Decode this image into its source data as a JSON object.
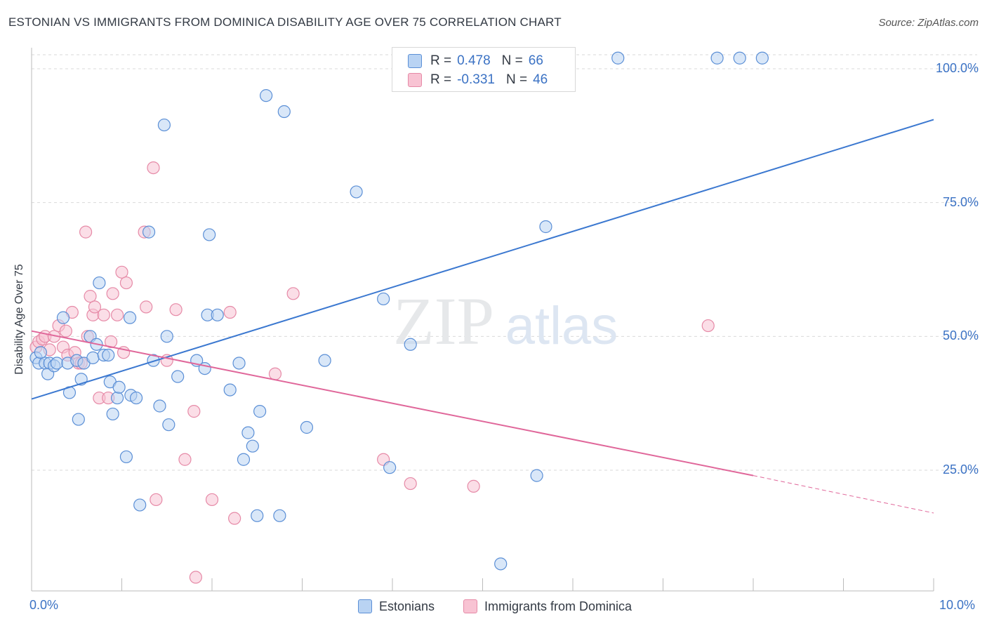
{
  "title": "ESTONIAN VS IMMIGRANTS FROM DOMINICA DISABILITY AGE OVER 75 CORRELATION CHART",
  "source": "Source: ZipAtlas.com",
  "watermark": {
    "zip": "ZIP",
    "atlas": "atlas"
  },
  "legend_top": {
    "rows": [
      {
        "r_label": "R =",
        "r_value": "0.478",
        "n_label": "N =",
        "n_value": "66"
      },
      {
        "r_label": "R =",
        "r_value": "-0.331",
        "n_label": "N =",
        "n_value": "46"
      }
    ]
  },
  "legend_bottom": {
    "series1": "Estonians",
    "series2": "Immigrants from Dominica"
  },
  "colors": {
    "blue_fill": "#b9d3f3",
    "blue_stroke": "#5b8fd6",
    "blue_line": "#3b78d0",
    "pink_fill": "#f8c3d3",
    "pink_stroke": "#e68aa7",
    "pink_line": "#e0679a",
    "tick_text": "#3b72c4",
    "grid": "#d9d9d9"
  },
  "chart_data": {
    "type": "scatter",
    "title": "ESTONIAN VS IMMIGRANTS FROM DOMINICA DISABILITY AGE OVER 75 CORRELATION CHART",
    "xlabel": "",
    "ylabel": "Disability Age Over 75",
    "xlim": [
      0,
      10
    ],
    "ylim": [
      0,
      102
    ],
    "x_tick_labels": [
      "0.0%",
      "10.0%"
    ],
    "y_ticks": [
      25,
      50,
      75,
      100
    ],
    "y_tick_labels": [
      "25.0%",
      "50.0%",
      "75.0%",
      "100.0%"
    ],
    "grid": true,
    "series": [
      {
        "name": "Estonians",
        "color": "#5b8fd6",
        "points": [
          [
            0.05,
            46
          ],
          [
            0.08,
            45
          ],
          [
            0.1,
            47
          ],
          [
            0.15,
            45
          ],
          [
            0.18,
            43
          ],
          [
            0.2,
            45
          ],
          [
            0.25,
            44.5
          ],
          [
            0.28,
            45
          ],
          [
            0.35,
            53.5
          ],
          [
            0.4,
            45
          ],
          [
            0.42,
            39.5
          ],
          [
            0.5,
            45.5
          ],
          [
            0.52,
            34.5
          ],
          [
            0.55,
            42
          ],
          [
            0.58,
            45
          ],
          [
            0.65,
            50
          ],
          [
            0.68,
            46
          ],
          [
            0.72,
            48.5
          ],
          [
            0.75,
            60
          ],
          [
            0.8,
            46.5
          ],
          [
            0.85,
            46.5
          ],
          [
            0.87,
            41.5
          ],
          [
            0.9,
            35.5
          ],
          [
            0.95,
            38.5
          ],
          [
            0.97,
            40.5
          ],
          [
            1.05,
            27.5
          ],
          [
            1.09,
            53.5
          ],
          [
            1.1,
            39
          ],
          [
            1.16,
            38.5
          ],
          [
            1.2,
            18.5
          ],
          [
            1.3,
            69.5
          ],
          [
            1.35,
            45.5
          ],
          [
            1.42,
            37
          ],
          [
            1.47,
            89.5
          ],
          [
            1.5,
            50
          ],
          [
            1.52,
            33.5
          ],
          [
            1.62,
            42.5
          ],
          [
            1.83,
            45.5
          ],
          [
            1.92,
            44
          ],
          [
            1.95,
            54
          ],
          [
            1.97,
            69
          ],
          [
            2.06,
            54
          ],
          [
            2.2,
            40
          ],
          [
            2.3,
            45
          ],
          [
            2.35,
            27
          ],
          [
            2.4,
            32
          ],
          [
            2.45,
            29.5
          ],
          [
            2.5,
            16.5
          ],
          [
            2.53,
            36
          ],
          [
            2.6,
            95
          ],
          [
            2.75,
            16.5
          ],
          [
            2.8,
            92
          ],
          [
            3.05,
            33
          ],
          [
            3.25,
            45.5
          ],
          [
            3.6,
            77
          ],
          [
            3.9,
            57
          ],
          [
            3.97,
            25.5
          ],
          [
            4.2,
            48.5
          ],
          [
            5.2,
            7.5
          ],
          [
            5.6,
            24
          ],
          [
            5.7,
            70.5
          ],
          [
            5.8,
            102
          ],
          [
            6.5,
            102
          ],
          [
            7.6,
            102
          ],
          [
            7.85,
            102
          ],
          [
            8.1,
            102
          ]
        ],
        "trend": {
          "x": [
            0,
            10
          ],
          "y": [
            38.3,
            90.5
          ]
        }
      },
      {
        "name": "Immigrants from Dominica",
        "color": "#e68aa7",
        "points": [
          [
            0.05,
            48
          ],
          [
            0.08,
            49
          ],
          [
            0.12,
            49.5
          ],
          [
            0.15,
            50
          ],
          [
            0.2,
            47.5
          ],
          [
            0.25,
            50
          ],
          [
            0.3,
            52
          ],
          [
            0.35,
            48
          ],
          [
            0.38,
            51
          ],
          [
            0.4,
            46.5
          ],
          [
            0.45,
            54.5
          ],
          [
            0.48,
            47
          ],
          [
            0.52,
            45
          ],
          [
            0.55,
            45
          ],
          [
            0.6,
            69.5
          ],
          [
            0.62,
            50
          ],
          [
            0.65,
            57.5
          ],
          [
            0.68,
            54
          ],
          [
            0.7,
            55.5
          ],
          [
            0.75,
            38.5
          ],
          [
            0.8,
            54
          ],
          [
            0.85,
            38.5
          ],
          [
            0.88,
            49
          ],
          [
            0.9,
            58
          ],
          [
            0.95,
            54
          ],
          [
            1.0,
            62
          ],
          [
            1.02,
            47
          ],
          [
            1.05,
            60
          ],
          [
            1.25,
            69.5
          ],
          [
            1.27,
            55.5
          ],
          [
            1.35,
            81.5
          ],
          [
            1.38,
            19.5
          ],
          [
            1.5,
            45.5
          ],
          [
            1.6,
            55
          ],
          [
            1.7,
            27
          ],
          [
            1.8,
            36
          ],
          [
            1.82,
            5
          ],
          [
            2.0,
            19.5
          ],
          [
            2.2,
            54.5
          ],
          [
            2.25,
            16
          ],
          [
            2.7,
            43
          ],
          [
            2.9,
            58
          ],
          [
            3.9,
            27
          ],
          [
            4.2,
            22.5
          ],
          [
            4.9,
            22
          ],
          [
            7.5,
            52
          ]
        ],
        "trend": {
          "x": [
            0,
            8.0
          ],
          "y": [
            51,
            24
          ],
          "dashed_extension": {
            "x": [
              8.0,
              10
            ],
            "y": [
              24,
              17
            ]
          }
        }
      }
    ]
  }
}
